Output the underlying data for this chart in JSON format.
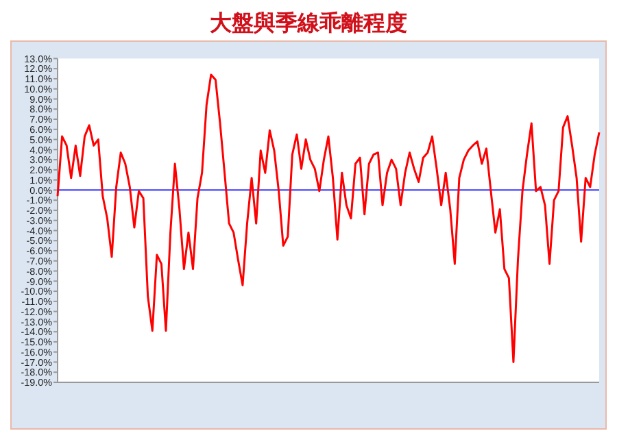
{
  "chart_data": {
    "type": "line",
    "title": "大盤與季線乖離程度",
    "categories": [
      null,
      null,
      null,
      null,
      null,
      null,
      null,
      null,
      null,
      null,
      null,
      null,
      null,
      null,
      null,
      null,
      null,
      null,
      null,
      null,
      null,
      null,
      null,
      null,
      null,
      null,
      null,
      null,
      null,
      null,
      null,
      null,
      null,
      null,
      null,
      null,
      null,
      null,
      null,
      null,
      null,
      null,
      null,
      null,
      null,
      null,
      null,
      null,
      null,
      null,
      null,
      null,
      null,
      null,
      null,
      null,
      null,
      null,
      null,
      null,
      null,
      null,
      null,
      null,
      null,
      null,
      null,
      null,
      null,
      null,
      null,
      null,
      null,
      null,
      null,
      null,
      null,
      null,
      null,
      null,
      null,
      null,
      null,
      null,
      null,
      null,
      null,
      null,
      null,
      null,
      null,
      null,
      null,
      null,
      null,
      null,
      null,
      null,
      null,
      null,
      null,
      null,
      null,
      null,
      null,
      null,
      null,
      null,
      null,
      null,
      null,
      null,
      null,
      null,
      null,
      null,
      null,
      null,
      null,
      null,
      null
    ],
    "series": [
      {
        "color": "#ff0000",
        "values": [
          -0.6,
          5.3,
          4.4,
          1.2,
          4.4,
          1.4,
          5.3,
          6.4,
          4.4,
          5.0,
          -0.6,
          -2.8,
          -6.6,
          0.3,
          3.7,
          2.6,
          0.3,
          -3.7,
          -0.1,
          -0.8,
          -10.5,
          -13.9,
          -6.4,
          -7.3,
          -13.9,
          -4.2,
          2.6,
          -1.9,
          -7.8,
          -4.2,
          -7.8,
          -0.8,
          1.7,
          8.4,
          11.4,
          10.9,
          6.6,
          1.7,
          -3.3,
          -4.2,
          -6.9,
          -9.4,
          -3.3,
          1.2,
          -3.3,
          3.9,
          1.7,
          5.9,
          3.9,
          -0.1,
          -5.5,
          -4.6,
          3.5,
          5.5,
          2.1,
          5.0,
          3.0,
          2.1,
          -0.1,
          3.0,
          5.3,
          1.2,
          -4.9,
          1.7,
          -1.5,
          -2.8,
          2.6,
          3.2,
          -2.4,
          2.6,
          3.5,
          3.7,
          -1.5,
          1.7,
          3.0,
          2.1,
          -1.5,
          1.7,
          3.7,
          2.1,
          0.8,
          3.2,
          3.7,
          5.3,
          2.1,
          -1.5,
          1.7,
          -1.9,
          -7.3,
          1.2,
          3.0,
          3.9,
          4.4,
          4.8,
          2.6,
          4.1,
          -0.1,
          -4.2,
          -1.9,
          -7.8,
          -8.7,
          -17.0,
          -6.9,
          -0.1,
          3.5,
          6.6,
          -0.1,
          0.3,
          -1.5,
          -7.3,
          -1.0,
          -0.1,
          6.2,
          7.3,
          4.4,
          1.2,
          -5.1,
          1.2,
          0.3,
          3.5,
          5.7
        ]
      }
    ],
    "ylim": [
      -19,
      13
    ],
    "yticks": [
      {
        "value": 13,
        "label": "13.0%"
      },
      {
        "value": 12,
        "label": "12.0%"
      },
      {
        "value": 11,
        "label": "11.0%"
      },
      {
        "value": 10,
        "label": "10.0%"
      },
      {
        "value": 9,
        "label": "9.0%"
      },
      {
        "value": 8,
        "label": "8.0%"
      },
      {
        "value": 7,
        "label": "7.0%"
      },
      {
        "value": 6,
        "label": "6.0%"
      },
      {
        "value": 5,
        "label": "5.0%"
      },
      {
        "value": 4,
        "label": "4.0%"
      },
      {
        "value": 3,
        "label": "3.0%"
      },
      {
        "value": 2,
        "label": "2.0%"
      },
      {
        "value": 1,
        "label": "1.0%"
      },
      {
        "value": 0,
        "label": "0.0%"
      },
      {
        "value": -1,
        "label": "-1.0%"
      },
      {
        "value": -2,
        "label": "-2.0%"
      },
      {
        "value": -3,
        "label": "-3.0%"
      },
      {
        "value": -4,
        "label": "-4.0%"
      },
      {
        "value": -5,
        "label": "-5.0%"
      },
      {
        "value": -6,
        "label": "-6.0%"
      },
      {
        "value": -7,
        "label": "-7.0%"
      },
      {
        "value": -8,
        "label": "-8.0%"
      },
      {
        "value": -9,
        "label": "-9.0%"
      },
      {
        "value": -10,
        "label": "-10.0%"
      },
      {
        "value": -11,
        "label": "-11.0%"
      },
      {
        "value": -12,
        "label": "-12.0%"
      },
      {
        "value": -13,
        "label": "-13.0%"
      },
      {
        "value": -14,
        "label": "-14.0%"
      },
      {
        "value": -15,
        "label": "-15.0%"
      },
      {
        "value": -16,
        "label": "-16.0%"
      },
      {
        "value": -17,
        "label": "-17.0%"
      },
      {
        "value": -18,
        "label": "-18.0%"
      },
      {
        "value": -19,
        "label": "-19.0%"
      }
    ],
    "ref_lines": [
      {
        "axis": "y",
        "value": 0,
        "color": "#6a6aff"
      }
    ],
    "grid": false,
    "marker": "none",
    "line_style": "solid"
  }
}
